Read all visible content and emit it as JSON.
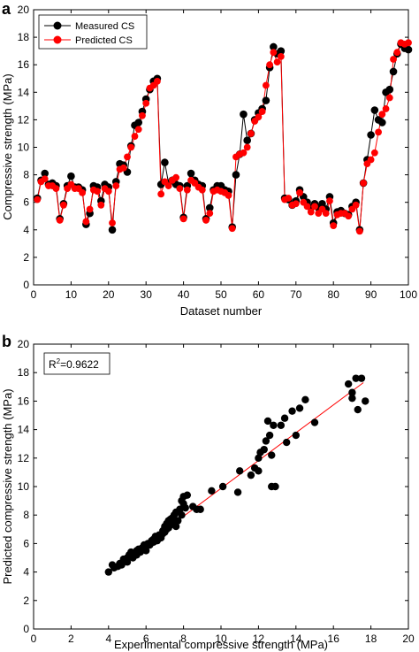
{
  "panels": {
    "a": {
      "letter": "a",
      "xlabel": "Dataset number",
      "ylabel": "Compressive strength (MPa)",
      "xticks": [
        "0",
        "10",
        "20",
        "30",
        "40",
        "50",
        "60",
        "70",
        "80",
        "90",
        "100"
      ],
      "yticks": [
        "0",
        "2",
        "4",
        "6",
        "8",
        "10",
        "12",
        "14",
        "16",
        "18",
        "20"
      ],
      "legend": [
        "Measured CS",
        "Predicted CS"
      ]
    },
    "b": {
      "letter": "b",
      "xlabel": "Experimental compressive strength (MPa)",
      "ylabel": "Predicted compressive strength (MPa)",
      "xticks": [
        "0",
        "2",
        "4",
        "6",
        "8",
        "10",
        "12",
        "14",
        "16",
        "18",
        "20"
      ],
      "yticks": [
        "0",
        "2",
        "4",
        "6",
        "8",
        "10",
        "12",
        "14",
        "16",
        "18",
        "20"
      ],
      "r2_base": "R",
      "r2_exp": "2",
      "r2_value": "=0.9622"
    }
  },
  "chart_data": [
    {
      "type": "line",
      "xlabel": "Dataset number",
      "ylabel": "Compressive strength (MPa)",
      "xlim": [
        0,
        100
      ],
      "ylim": [
        0,
        20
      ],
      "grid": false,
      "legend_position": "top-left",
      "x": [
        1,
        2,
        3,
        4,
        5,
        6,
        7,
        8,
        9,
        10,
        11,
        12,
        13,
        14,
        15,
        16,
        17,
        18,
        19,
        20,
        21,
        22,
        23,
        24,
        25,
        26,
        27,
        28,
        29,
        30,
        31,
        32,
        33,
        34,
        35,
        36,
        37,
        38,
        39,
        40,
        41,
        42,
        43,
        44,
        45,
        46,
        47,
        48,
        49,
        50,
        51,
        52,
        53,
        54,
        55,
        56,
        57,
        58,
        59,
        60,
        61,
        62,
        63,
        64,
        65,
        66,
        67,
        68,
        69,
        70,
        71,
        72,
        73,
        74,
        75,
        76,
        77,
        78,
        79,
        80,
        81,
        82,
        83,
        84,
        85,
        86,
        87,
        88,
        89,
        90,
        91,
        92,
        93,
        94,
        95,
        96,
        97,
        98,
        99,
        100
      ],
      "series": [
        {
          "name": "Measured CS",
          "color": "#000000",
          "values": [
            6.3,
            7.6,
            8.1,
            7.3,
            7.4,
            7.2,
            4.8,
            5.9,
            7.2,
            7.9,
            7.1,
            7.1,
            6.9,
            4.4,
            5.2,
            7.2,
            7.1,
            6.1,
            7.3,
            7.1,
            4.0,
            7.5,
            8.8,
            8.7,
            8.2,
            10.1,
            11.6,
            11.8,
            12.6,
            13.5,
            14.2,
            14.8,
            15.0,
            7.3,
            8.9,
            7.4,
            7.6,
            7.3,
            7.2,
            4.9,
            7.2,
            8.1,
            7.6,
            7.3,
            7.2,
            4.8,
            5.6,
            6.9,
            7.2,
            7.2,
            6.9,
            6.8,
            4.2,
            8.0,
            9.5,
            12.4,
            10.5,
            11.0,
            12.0,
            12.5,
            12.8,
            13.4,
            15.8,
            17.3,
            16.8,
            17.0,
            6.3,
            6.2,
            5.8,
            6.1,
            6.9,
            6.4,
            6.0,
            5.6,
            5.9,
            5.6,
            5.9,
            5.5,
            6.4,
            4.5,
            5.3,
            5.4,
            5.2,
            5.1,
            5.7,
            6.0,
            4.0,
            7.4,
            9.1,
            10.9,
            12.7,
            12.0,
            11.8,
            14.0,
            14.2,
            15.5,
            16.8,
            17.5,
            17.2,
            17.1
          ]
        },
        {
          "name": "Predicted CS",
          "color": "#ff0000",
          "values": [
            6.2,
            7.5,
            7.7,
            7.2,
            7.2,
            7.0,
            4.7,
            5.8,
            7.0,
            7.3,
            7.0,
            7.0,
            6.7,
            4.6,
            5.5,
            6.9,
            6.8,
            5.8,
            7.0,
            6.8,
            4.5,
            7.2,
            8.4,
            8.5,
            9.3,
            10.0,
            10.8,
            11.3,
            12.3,
            13.2,
            14.3,
            14.5,
            14.8,
            6.6,
            7.5,
            7.2,
            7.6,
            7.8,
            7.0,
            4.8,
            6.9,
            7.6,
            7.4,
            7.1,
            6.9,
            4.7,
            5.2,
            6.8,
            6.9,
            6.8,
            6.7,
            6.5,
            4.1,
            9.3,
            9.5,
            9.6,
            10.0,
            11.0,
            11.9,
            12.2,
            12.6,
            14.5,
            16.0,
            16.9,
            16.2,
            16.6,
            6.2,
            6.3,
            5.8,
            5.9,
            6.7,
            6.0,
            5.7,
            5.3,
            5.7,
            5.2,
            5.5,
            5.2,
            6.1,
            4.3,
            5.1,
            5.2,
            5.2,
            5.0,
            5.5,
            5.8,
            3.9,
            7.4,
            8.8,
            9.1,
            9.6,
            11.1,
            12.4,
            12.8,
            13.6,
            16.4,
            16.9,
            17.6,
            17.5,
            17.6
          ]
        }
      ]
    },
    {
      "type": "scatter",
      "xlabel": "Experimental compressive strength (MPa)",
      "ylabel": "Predicted compressive strength (MPa)",
      "xlim": [
        0,
        20
      ],
      "ylim": [
        0,
        20
      ],
      "grid": false,
      "annotation": "R2=0.9622",
      "fit_line": {
        "color": "#ff0000",
        "x": [
          4.0,
          17.6
        ],
        "y": [
          4.0,
          17.3
        ]
      },
      "points": [
        [
          4.0,
          4.0
        ],
        [
          4.2,
          4.5
        ],
        [
          4.3,
          4.3
        ],
        [
          4.5,
          4.4
        ],
        [
          4.6,
          4.6
        ],
        [
          4.7,
          4.5
        ],
        [
          4.8,
          4.9
        ],
        [
          4.9,
          4.8
        ],
        [
          5.0,
          4.7
        ],
        [
          5.0,
          5.0
        ],
        [
          5.1,
          5.2
        ],
        [
          5.2,
          5.1
        ],
        [
          5.2,
          5.4
        ],
        [
          5.3,
          5.0
        ],
        [
          5.4,
          5.3
        ],
        [
          5.5,
          5.5
        ],
        [
          5.5,
          5.2
        ],
        [
          5.6,
          5.6
        ],
        [
          5.7,
          5.4
        ],
        [
          5.8,
          5.7
        ],
        [
          5.9,
          5.9
        ],
        [
          6.0,
          5.8
        ],
        [
          6.0,
          5.5
        ],
        [
          6.1,
          6.0
        ],
        [
          6.2,
          5.9
        ],
        [
          6.3,
          6.2
        ],
        [
          6.4,
          6.1
        ],
        [
          6.4,
          6.3
        ],
        [
          6.5,
          6.5
        ],
        [
          6.6,
          6.2
        ],
        [
          6.7,
          6.6
        ],
        [
          6.8,
          6.4
        ],
        [
          6.9,
          6.7
        ],
        [
          6.9,
          6.9
        ],
        [
          7.0,
          6.8
        ],
        [
          7.0,
          7.2
        ],
        [
          7.1,
          7.0
        ],
        [
          7.1,
          7.4
        ],
        [
          7.2,
          7.1
        ],
        [
          7.2,
          7.6
        ],
        [
          7.3,
          7.3
        ],
        [
          7.3,
          7.7
        ],
        [
          7.4,
          7.8
        ],
        [
          7.4,
          7.5
        ],
        [
          7.5,
          8.0
        ],
        [
          7.6,
          7.2
        ],
        [
          7.6,
          8.2
        ],
        [
          7.7,
          7.6
        ],
        [
          7.8,
          8.4
        ],
        [
          7.9,
          8.0
        ],
        [
          7.9,
          9.0
        ],
        [
          8.0,
          8.8
        ],
        [
          8.0,
          9.3
        ],
        [
          8.1,
          8.5
        ],
        [
          8.2,
          9.4
        ],
        [
          8.5,
          8.6
        ],
        [
          8.7,
          8.4
        ],
        [
          8.9,
          8.4
        ],
        [
          9.5,
          9.7
        ],
        [
          10.1,
          10.0
        ],
        [
          10.9,
          9.6
        ],
        [
          11.0,
          11.1
        ],
        [
          11.6,
          10.8
        ],
        [
          11.8,
          11.3
        ],
        [
          12.0,
          12.0
        ],
        [
          12.0,
          11.1
        ],
        [
          12.1,
          12.4
        ],
        [
          12.3,
          12.6
        ],
        [
          12.4,
          13.2
        ],
        [
          12.5,
          14.6
        ],
        [
          12.6,
          13.6
        ],
        [
          12.7,
          10.0
        ],
        [
          12.7,
          12.2
        ],
        [
          12.8,
          14.3
        ],
        [
          12.9,
          10.0
        ],
        [
          13.2,
          14.3
        ],
        [
          13.4,
          14.8
        ],
        [
          13.5,
          13.1
        ],
        [
          13.8,
          15.3
        ],
        [
          14.0,
          13.6
        ],
        [
          14.2,
          15.5
        ],
        [
          14.5,
          16.1
        ],
        [
          15.0,
          14.5
        ],
        [
          16.8,
          17.2
        ],
        [
          17.0,
          16.6
        ],
        [
          17.0,
          16.2
        ],
        [
          17.2,
          17.6
        ],
        [
          17.3,
          15.4
        ],
        [
          17.5,
          17.6
        ],
        [
          17.7,
          16.0
        ]
      ]
    }
  ]
}
